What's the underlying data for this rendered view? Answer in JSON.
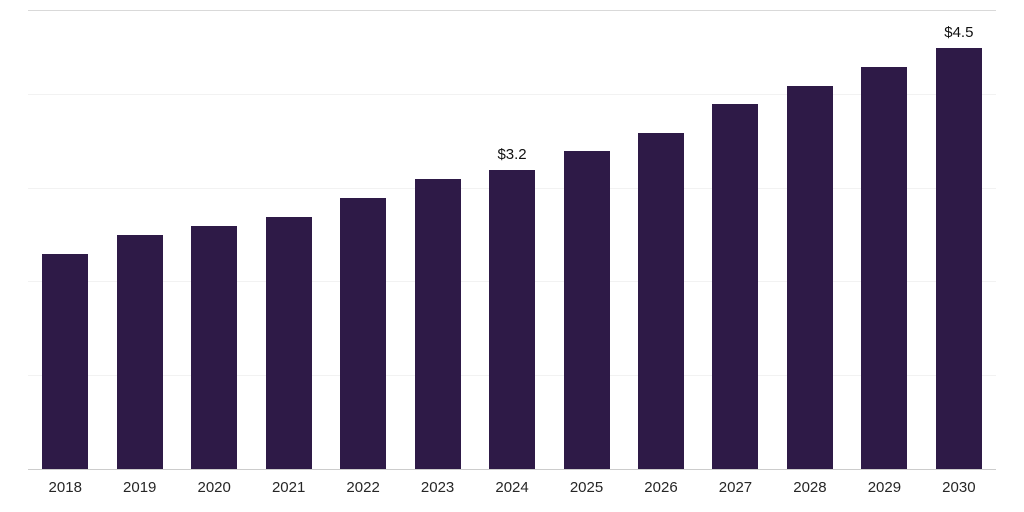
{
  "chart_data": {
    "type": "bar",
    "title": "",
    "xlabel": "",
    "ylabel": "",
    "categories": [
      "2018",
      "2019",
      "2020",
      "2021",
      "2022",
      "2023",
      "2024",
      "2025",
      "2026",
      "2027",
      "2028",
      "2029",
      "2030"
    ],
    "values": [
      2.3,
      2.5,
      2.6,
      2.7,
      2.9,
      3.1,
      3.2,
      3.4,
      3.6,
      3.9,
      4.1,
      4.3,
      4.5
    ],
    "value_labels": [
      "",
      "",
      "",
      "",
      "",
      "",
      "$3.2",
      "",
      "",
      "",
      "",
      "",
      "$4.5"
    ],
    "ylim": [
      0,
      4.9
    ],
    "gridline_values": [
      1,
      2,
      3,
      4
    ],
    "grid": "horizontal",
    "legend": "none",
    "bar_color": "#2e1a47",
    "gridline_color": "#f2f2f2",
    "axis_color": "#cccccc",
    "tick_color": "#262626"
  }
}
